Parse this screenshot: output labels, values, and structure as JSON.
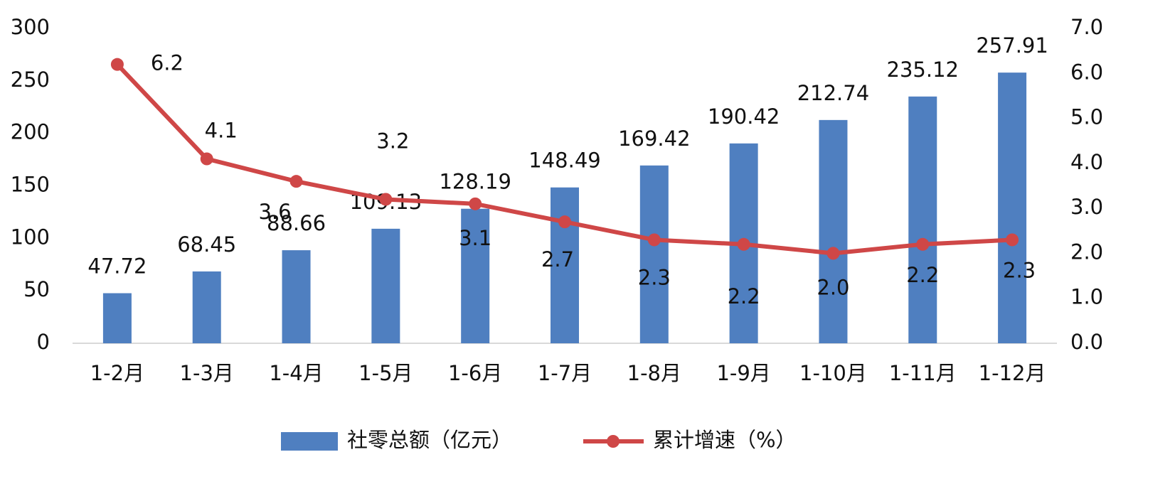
{
  "chart_data": {
    "type": "bar_line",
    "categories": [
      "1-2月",
      "1-3月",
      "1-4月",
      "1-5月",
      "1-6月",
      "1-7月",
      "1-8月",
      "1-9月",
      "1-10月",
      "1-11月",
      "1-12月"
    ],
    "series": [
      {
        "name": "社零总额（亿元）",
        "type": "bar",
        "color": "#4f7fc0",
        "values": [
          47.72,
          68.45,
          88.66,
          109.13,
          128.19,
          148.49,
          169.42,
          190.42,
          212.74,
          235.12,
          257.91
        ]
      },
      {
        "name": "累计增速（%）",
        "type": "line",
        "axis": "y2",
        "color": "#cf4747",
        "values": [
          6.2,
          4.1,
          3.6,
          3.2,
          3.1,
          2.7,
          2.3,
          2.2,
          2.0,
          2.2,
          2.3
        ],
        "value_labels": [
          "6.2",
          "4.1",
          "3.6",
          "3.2",
          "3.1",
          "2.7",
          "2.3",
          "2.2",
          "2.0",
          "2.2",
          "2.3"
        ]
      }
    ],
    "ylim": [
      0,
      300
    ],
    "yticks": [
      0,
      50,
      100,
      150,
      200,
      250,
      300
    ],
    "y2lim": [
      0,
      7
    ],
    "y2ticks": [
      {
        "value": 0,
        "label": "0.0"
      },
      {
        "value": 1,
        "label": "1.0"
      },
      {
        "value": 2,
        "label": "2.0"
      },
      {
        "value": 3,
        "label": "3.0"
      },
      {
        "value": 4,
        "label": "4.0"
      },
      {
        "value": 5,
        "label": "5.0"
      },
      {
        "value": 6,
        "label": "6.0"
      },
      {
        "value": 7,
        "label": "7.0"
      }
    ],
    "grid": false,
    "legend": "bottom"
  }
}
